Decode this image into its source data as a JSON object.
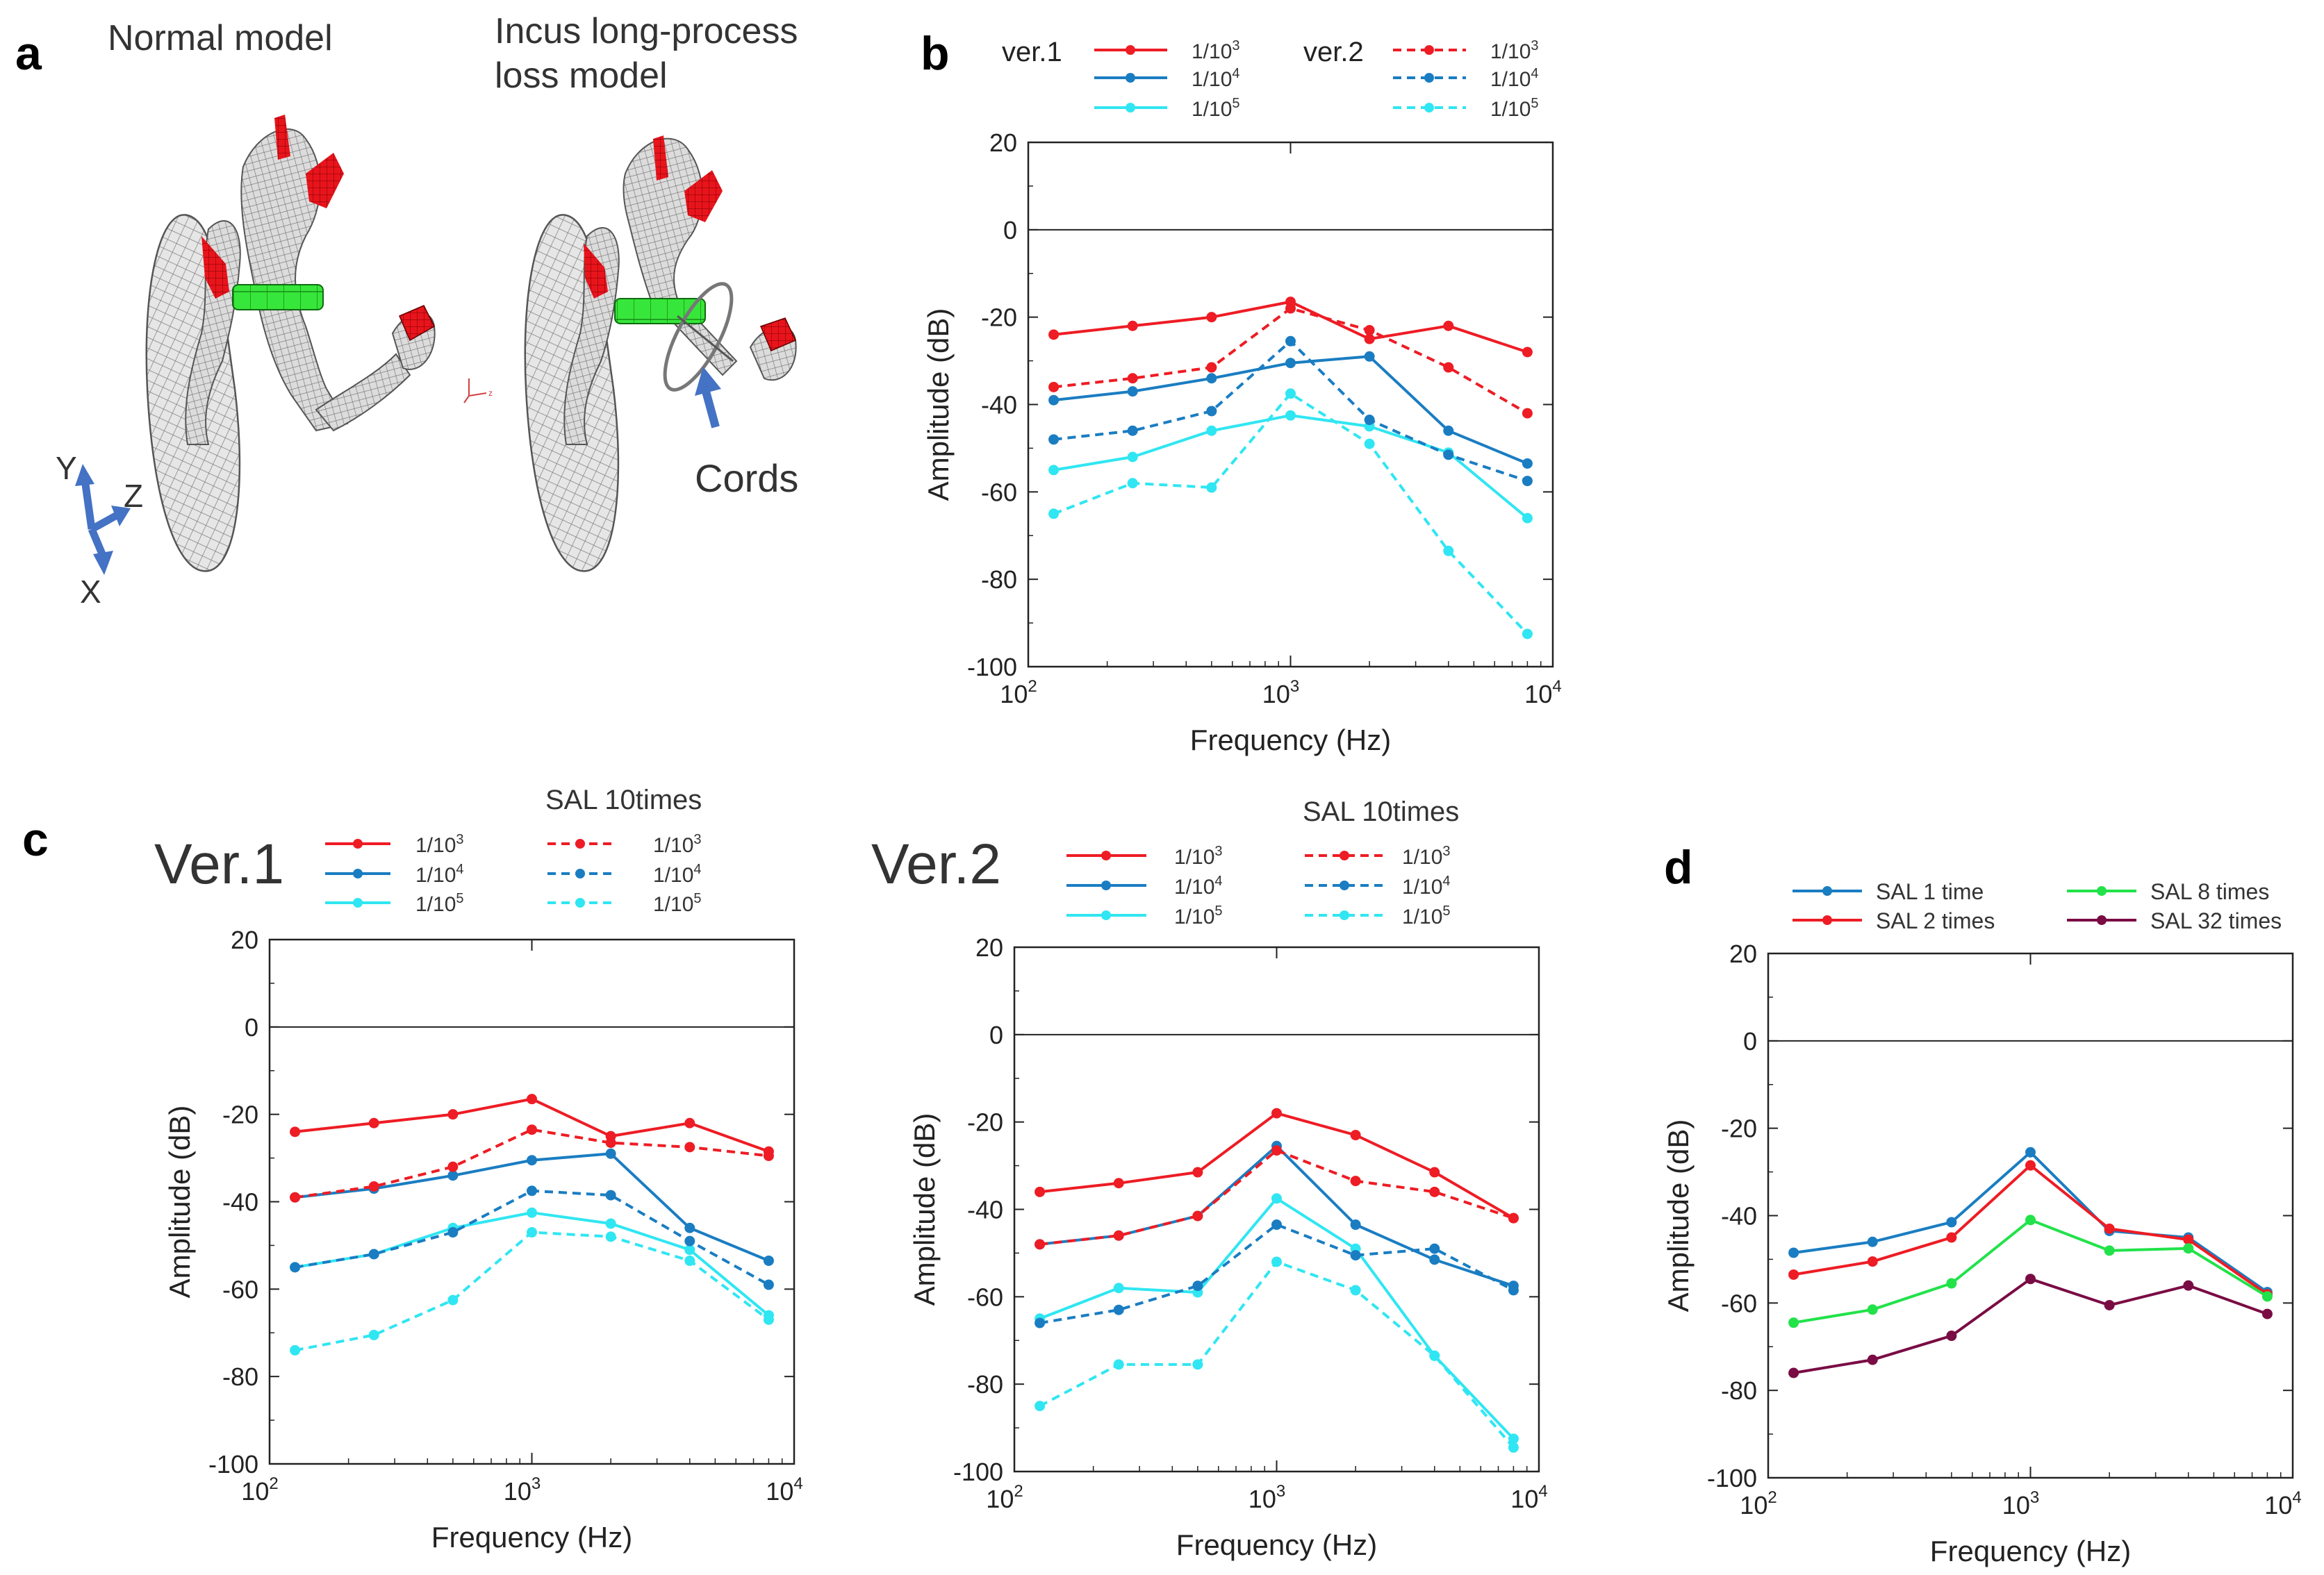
{
  "colors": {
    "red": "#ee1c24",
    "blue": "#1a7dc2",
    "cyan": "#30e6f2",
    "green": "#22e24a",
    "maroon": "#7a0c44",
    "mesh": "#9a9a9a",
    "arrow": "#4472c4"
  },
  "panel_a": {
    "letter": "a",
    "normal_title": "Normal model",
    "loss_title_line1": "Incus long-process",
    "loss_title_line2": "loss model",
    "cords_label": "Cords",
    "axis_y": "Y",
    "axis_z": "Z",
    "axis_x": "X",
    "mini_axis": "z"
  },
  "panel_b": {
    "letter": "b",
    "legend_ver1": "ver.1",
    "legend_ver2": "ver.2"
  },
  "panel_c": {
    "letter": "c",
    "ver1_title": "Ver.1",
    "ver2_title": "Ver.2",
    "sal_label": "SAL 10times"
  },
  "panel_d": {
    "letter": "d"
  },
  "chart_data": [
    {
      "id": "b",
      "type": "line",
      "xscale": "log",
      "x": [
        125,
        250,
        500,
        1000,
        2000,
        4000,
        8000
      ],
      "xlim": [
        100,
        10000
      ],
      "ylim": [
        -100,
        20
      ],
      "yticks": [
        20,
        0,
        -20,
        -40,
        -60,
        -80,
        -100
      ],
      "xticks_major": [
        "10^2",
        "10^3",
        "10^4"
      ],
      "xlabel": "Frequency (Hz)",
      "ylabel": "Amplitude (dB)",
      "reference_line": 0,
      "series": [
        {
          "name": "1/10^3",
          "group": "ver.1",
          "color": "red",
          "dash": "solid",
          "values": [
            -24,
            -22,
            -20,
            -16.5,
            -25,
            -22,
            -28
          ]
        },
        {
          "name": "1/10^4",
          "group": "ver.1",
          "color": "blue",
          "dash": "solid",
          "values": [
            -39,
            -37,
            -34,
            -30.5,
            -29,
            -46,
            -53.5
          ]
        },
        {
          "name": "1/10^5",
          "group": "ver.1",
          "color": "cyan",
          "dash": "solid",
          "values": [
            -55,
            -52,
            -46,
            -42.5,
            -45,
            -51,
            -66
          ]
        },
        {
          "name": "1/10^3",
          "group": "ver.2",
          "color": "red",
          "dash": "dashed",
          "values": [
            -36,
            -34,
            -31.5,
            -18,
            -23,
            -31.5,
            -42
          ]
        },
        {
          "name": "1/10^4",
          "group": "ver.2",
          "color": "blue",
          "dash": "dashed",
          "values": [
            -48,
            -46,
            -41.5,
            -25.5,
            -43.5,
            -51.5,
            -57.5
          ]
        },
        {
          "name": "1/10^5",
          "group": "ver.2",
          "color": "cyan",
          "dash": "dashed",
          "values": [
            -65,
            -58,
            -59,
            -37.5,
            -49,
            -73.5,
            -92.5
          ]
        }
      ]
    },
    {
      "id": "c1",
      "type": "line",
      "title": "Ver.1",
      "xscale": "log",
      "x": [
        125,
        250,
        500,
        1000,
        2000,
        4000,
        8000
      ],
      "xlim": [
        100,
        10000
      ],
      "ylim": [
        -100,
        20
      ],
      "yticks": [
        20,
        0,
        -20,
        -40,
        -60,
        -80,
        -100
      ],
      "xticks_major": [
        "10^2",
        "10^3",
        "10^4"
      ],
      "xlabel": "Frequency (Hz)",
      "ylabel": "Amplitude (dB)",
      "reference_line": 0,
      "legend_header": "SAL 10times",
      "series": [
        {
          "name": "1/10^3",
          "color": "red",
          "dash": "solid",
          "values": [
            -24,
            -22,
            -20,
            -16.5,
            -25,
            -22,
            -28.5
          ]
        },
        {
          "name": "1/10^4",
          "color": "blue",
          "dash": "solid",
          "values": [
            -39,
            -37,
            -34,
            -30.5,
            -29,
            -46,
            -53.5
          ]
        },
        {
          "name": "1/10^5",
          "color": "cyan",
          "dash": "solid",
          "values": [
            -55,
            -52,
            -46,
            -42.5,
            -45,
            -51,
            -66
          ]
        },
        {
          "name": "1/10^3",
          "color": "red",
          "dash": "dashed",
          "values": [
            -39,
            -36.5,
            -32,
            -23.5,
            -26.5,
            -27.5,
            -29.5
          ]
        },
        {
          "name": "1/10^4",
          "color": "blue",
          "dash": "dashed",
          "values": [
            -55,
            -52,
            -47,
            -37.5,
            -38.5,
            -49,
            -59
          ]
        },
        {
          "name": "1/10^5",
          "color": "cyan",
          "dash": "dashed",
          "values": [
            -74,
            -70.5,
            -62.5,
            -47,
            -48,
            -53.5,
            -67
          ]
        }
      ]
    },
    {
      "id": "c2",
      "type": "line",
      "title": "Ver.2",
      "xscale": "log",
      "x": [
        125,
        250,
        500,
        1000,
        2000,
        4000,
        8000
      ],
      "xlim": [
        100,
        10000
      ],
      "ylim": [
        -100,
        20
      ],
      "yticks": [
        20,
        0,
        -20,
        -40,
        -60,
        -80,
        -100
      ],
      "xticks_major": [
        "10^2",
        "10^3",
        "10^4"
      ],
      "xlabel": "Frequency (Hz)",
      "ylabel": "Amplitude (dB)",
      "reference_line": 0,
      "legend_header": "SAL 10times",
      "series": [
        {
          "name": "1/10^3",
          "color": "red",
          "dash": "solid",
          "values": [
            -36,
            -34,
            -31.5,
            -18,
            -23,
            -31.5,
            -42
          ]
        },
        {
          "name": "1/10^4",
          "color": "blue",
          "dash": "solid",
          "values": [
            -48,
            -46,
            -41.5,
            -25.5,
            -43.5,
            -51.5,
            -57.5
          ]
        },
        {
          "name": "1/10^5",
          "color": "cyan",
          "dash": "solid",
          "values": [
            -65,
            -58,
            -59,
            -37.5,
            -49,
            -73.5,
            -92.5
          ]
        },
        {
          "name": "1/10^3",
          "color": "red",
          "dash": "dashed",
          "values": [
            -48,
            -46,
            -41.5,
            -26.5,
            -33.5,
            -36,
            -42
          ]
        },
        {
          "name": "1/10^4",
          "color": "blue",
          "dash": "dashed",
          "values": [
            -66,
            -63,
            -57.5,
            -43.5,
            -50.5,
            -49,
            -58.5
          ]
        },
        {
          "name": "1/10^5",
          "color": "cyan",
          "dash": "dashed",
          "values": [
            -85,
            -75.5,
            -75.5,
            -52,
            -58.5,
            -73.5,
            -94.5
          ]
        }
      ]
    },
    {
      "id": "d",
      "type": "line",
      "xscale": "log",
      "x": [
        125,
        250,
        500,
        1000,
        2000,
        4000,
        8000
      ],
      "xlim": [
        100,
        10000
      ],
      "ylim": [
        -100,
        20
      ],
      "yticks": [
        20,
        0,
        -20,
        -40,
        -60,
        -80,
        -100
      ],
      "xticks_major": [
        "10^2",
        "10^3",
        "10^4"
      ],
      "xlabel": "Frequency (Hz)",
      "ylabel": "Amplitude (dB)",
      "reference_line": 0,
      "series": [
        {
          "name": "SAL 1 time",
          "color": "blue",
          "dash": "solid",
          "values": [
            -48.5,
            -46,
            -41.5,
            -25.5,
            -43.5,
            -45,
            -57.5
          ]
        },
        {
          "name": "SAL 2 times",
          "color": "red",
          "dash": "solid",
          "values": [
            -53.5,
            -50.5,
            -45,
            -28.5,
            -43,
            -45.5,
            -58
          ]
        },
        {
          "name": "SAL 8 times",
          "color": "green",
          "dash": "solid",
          "values": [
            -64.5,
            -61.5,
            -55.5,
            -41,
            -48,
            -47.5,
            -58.5
          ]
        },
        {
          "name": "SAL 32 times",
          "color": "maroon",
          "dash": "solid",
          "values": [
            -76,
            -73,
            -67.5,
            -54.5,
            -60.5,
            -56,
            -62.5
          ]
        }
      ]
    }
  ]
}
